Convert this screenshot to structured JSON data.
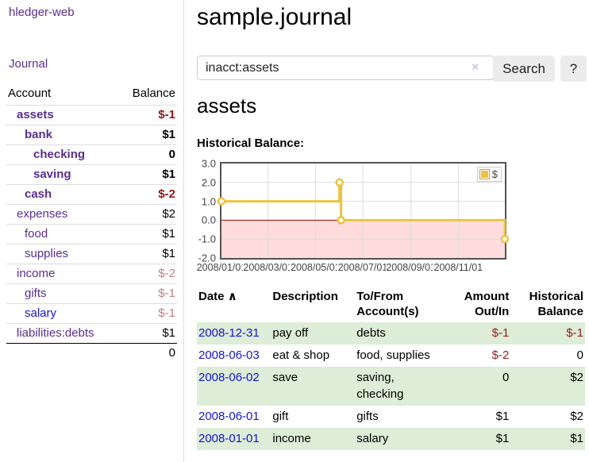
{
  "app": {
    "title": "hledger-web"
  },
  "sidebar": {
    "journal_link": "Journal",
    "headers": [
      "Account",
      "Balance"
    ],
    "rows": [
      {
        "account": "assets",
        "balance": "$-1"
      },
      {
        "account": "bank",
        "balance": "$1"
      },
      {
        "account": "checking",
        "balance": "0"
      },
      {
        "account": "saving",
        "balance": "$1"
      },
      {
        "account": "cash",
        "balance": "$-2"
      },
      {
        "account": "expenses",
        "balance": "$2"
      },
      {
        "account": "food",
        "balance": "$1"
      },
      {
        "account": "supplies",
        "balance": "$1"
      },
      {
        "account": "income",
        "balance": "$-2"
      },
      {
        "account": "gifts",
        "balance": "$-1"
      },
      {
        "account": "salary",
        "balance": "$-1"
      },
      {
        "account": "liabilities:debts",
        "balance": "$1"
      }
    ],
    "total": "0"
  },
  "header": {
    "title": "sample.journal"
  },
  "search": {
    "value": "inacct:assets",
    "clear_icon": "×",
    "button_label": "Search",
    "help_label": "?"
  },
  "account_page": {
    "heading": "assets",
    "chart_label": "Historical Balance:"
  },
  "chart_data": {
    "type": "line",
    "steps": true,
    "title": "Historical Balance:",
    "series": [
      {
        "name": "$",
        "color": "#edc240",
        "points": [
          [
            "2008-01-01",
            1
          ],
          [
            "2008-06-01",
            2
          ],
          [
            "2008-06-03",
            0
          ],
          [
            "2008-12-31",
            -1
          ]
        ]
      }
    ],
    "x_range": [
      "2008-01-01",
      "2008-12-31"
    ],
    "x_ticks": [
      {
        "date": "2008-01-01",
        "label": "2008/01/01"
      },
      {
        "date": "2008-03-01",
        "label": "2008/03/01"
      },
      {
        "date": "2008-05-01",
        "label": "2008/05/01"
      },
      {
        "date": "2008-07-01",
        "label": "2008/07/01"
      },
      {
        "date": "2008-09-01",
        "label": "2008/09/01"
      },
      {
        "date": "2008-11-01",
        "label": "2008/11/01"
      }
    ],
    "y_ticks": [
      {
        "value": 3,
        "label": "3.0"
      },
      {
        "value": 2,
        "label": "2.0"
      },
      {
        "value": 1,
        "label": "1.0"
      },
      {
        "value": 0,
        "label": "0.0"
      },
      {
        "value": -1,
        "label": "-1.0"
      },
      {
        "value": -2,
        "label": "-2.0"
      }
    ],
    "ylim": [
      -2,
      3
    ],
    "legend": {
      "label": "$",
      "position": "top-right"
    },
    "colors": {
      "negative_region": "#ffdcdc",
      "zero_line": "#a40000",
      "grid": "#dcdcdc",
      "border": "#545454"
    }
  },
  "register": {
    "headers": {
      "date": "Date",
      "sort_icon": "∧",
      "description": "Description",
      "accounts": "To/From Account(s)",
      "amount": "Amount Out/In",
      "balance": "Historical Balance"
    },
    "rows": [
      {
        "date": "2008-12-31",
        "description": "pay off",
        "accounts": "debts",
        "amount": "$-1",
        "balance": "$-1"
      },
      {
        "date": "2008-06-03",
        "description": "eat & shop",
        "accounts": "food, supplies",
        "amount": "$-2",
        "balance": "0"
      },
      {
        "date": "2008-06-02",
        "description": "save",
        "accounts": "saving, checking",
        "amount": "0",
        "balance": "$2"
      },
      {
        "date": "2008-06-01",
        "description": "gift",
        "accounts": "gifts",
        "amount": "$1",
        "balance": "$2"
      },
      {
        "date": "2008-01-01",
        "description": "income",
        "accounts": "salary",
        "amount": "$1",
        "balance": "$1"
      }
    ]
  }
}
